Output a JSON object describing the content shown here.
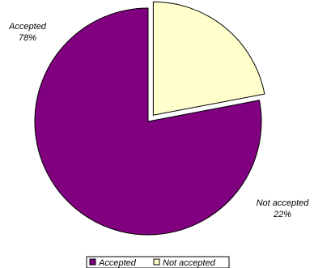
{
  "chart_data": {
    "type": "pie",
    "categories": [
      "Accepted",
      "Not accepted"
    ],
    "values": [
      78,
      22
    ],
    "value_labels": [
      "78%",
      "22%"
    ],
    "colors": [
      "#800080",
      "#FFFFCC"
    ],
    "exploded": [
      false,
      true
    ],
    "legend_position": "bottom",
    "title": ""
  }
}
